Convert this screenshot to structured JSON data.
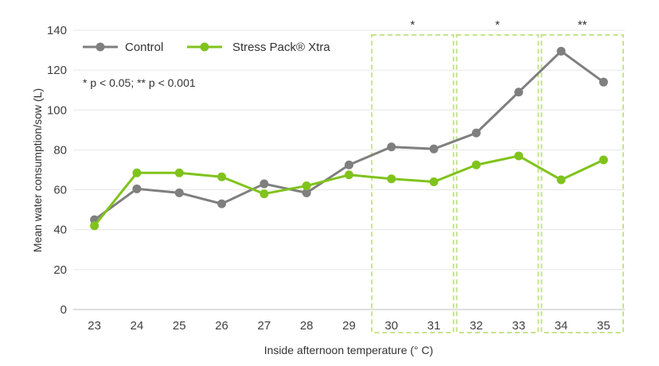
{
  "chart_data": {
    "type": "line",
    "title": "",
    "xlabel": "Inside afternoon temperature (° C)",
    "ylabel": "Mean water consumption/sow (L)",
    "x": [
      23,
      24,
      25,
      26,
      27,
      28,
      29,
      30,
      31,
      32,
      33,
      34,
      35
    ],
    "ylim": [
      0,
      140
    ],
    "yticks": [
      0,
      20,
      40,
      60,
      80,
      100,
      120,
      140
    ],
    "grid": true,
    "legend_position": "top-left",
    "series": [
      {
        "name": "Control",
        "color": "#7f7f7f",
        "values": [
          45,
          60.5,
          58.5,
          53,
          63,
          58.5,
          72.5,
          81.5,
          80.5,
          88.5,
          109,
          129.5,
          114
        ]
      },
      {
        "name": "Stress Pack® Xtra",
        "color": "#80c31c",
        "values": [
          42,
          68.5,
          68.5,
          66.5,
          58,
          62,
          67.5,
          65.5,
          64,
          72.5,
          77,
          65,
          75
        ]
      }
    ],
    "annotation": "* p < 0.05; ** p < 0.001",
    "significance": [
      {
        "x": [
          30,
          31
        ],
        "label": "*"
      },
      {
        "x": [
          32,
          33
        ],
        "label": "*"
      },
      {
        "x": [
          34,
          35
        ],
        "label": "**"
      }
    ],
    "highlight_color": "#c6e38e"
  }
}
